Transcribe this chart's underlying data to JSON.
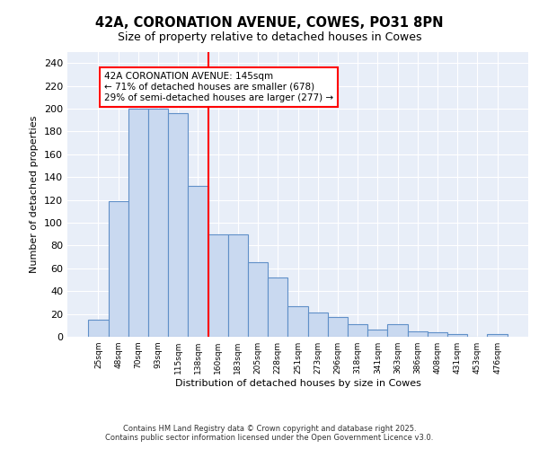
{
  "title_line1": "42A, CORONATION AVENUE, COWES, PO31 8PN",
  "title_line2": "Size of property relative to detached houses in Cowes",
  "xlabel": "Distribution of detached houses by size in Cowes",
  "ylabel": "Number of detached properties",
  "categories": [
    "25sqm",
    "48sqm",
    "70sqm",
    "93sqm",
    "115sqm",
    "138sqm",
    "160sqm",
    "183sqm",
    "205sqm",
    "228sqm",
    "251sqm",
    "273sqm",
    "296sqm",
    "318sqm",
    "341sqm",
    "363sqm",
    "386sqm",
    "408sqm",
    "431sqm",
    "453sqm",
    "476sqm"
  ],
  "values": [
    15,
    119,
    200,
    200,
    196,
    132,
    90,
    90,
    65,
    52,
    27,
    21,
    17,
    11,
    6,
    11,
    5,
    4,
    2,
    0,
    2
  ],
  "bar_color": "#c9d9f0",
  "bar_edge_color": "#6090c8",
  "red_line_x": 5.5,
  "annotation_text": "42A CORONATION AVENUE: 145sqm\n← 71% of detached houses are smaller (678)\n29% of semi-detached houses are larger (277) →",
  "ylim": [
    0,
    250
  ],
  "yticks": [
    0,
    20,
    40,
    60,
    80,
    100,
    120,
    140,
    160,
    180,
    200,
    220,
    240
  ],
  "background_color": "#e8eef8",
  "grid_color": "#ffffff",
  "footer_line1": "Contains HM Land Registry data © Crown copyright and database right 2025.",
  "footer_line2": "Contains public sector information licensed under the Open Government Licence v3.0."
}
